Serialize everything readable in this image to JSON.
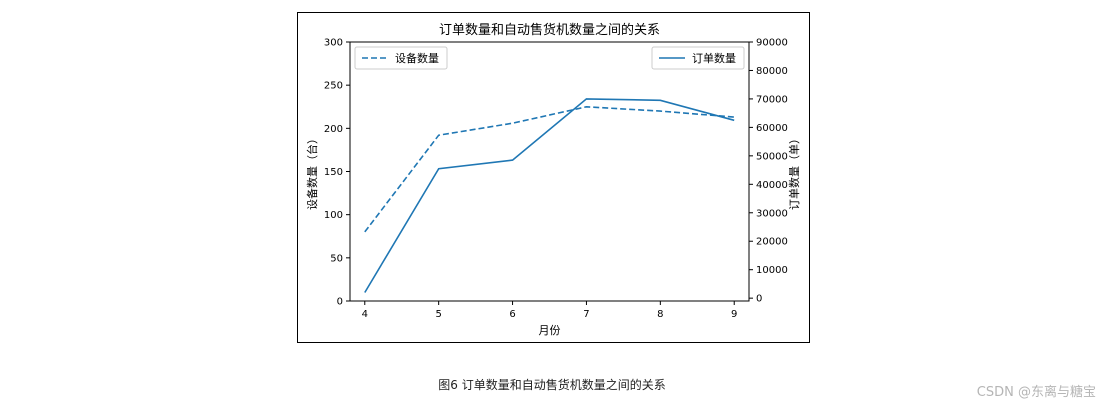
{
  "caption": "图6 订单数量和自动售货机数量之间的关系",
  "watermark": "CSDN @东离与糖宝",
  "chart_data": {
    "type": "line",
    "title": "订单数量和自动售货机数量之间的关系",
    "xlabel": "月份",
    "x": [
      4,
      5,
      6,
      7,
      8,
      9
    ],
    "x_ticks": [
      "4",
      "5",
      "6",
      "7",
      "8",
      "9"
    ],
    "series": [
      {
        "name": "设备数量",
        "axis": "left",
        "style": "dashed",
        "color": "#1f77b4",
        "values": [
          80,
          192,
          206,
          225,
          220,
          213
        ]
      },
      {
        "name": "订单数量",
        "axis": "right",
        "style": "solid",
        "color": "#1f77b4",
        "values": [
          2000,
          45500,
          48500,
          70000,
          69500,
          62500
        ]
      }
    ],
    "y_left": {
      "label": "设备数量（台）",
      "ylim": [
        0,
        300
      ],
      "ticks": [
        0,
        50,
        100,
        150,
        200,
        250,
        300
      ]
    },
    "y_right": {
      "label": "订单数量（单）",
      "ylim": [
        -1000,
        90000
      ],
      "ticks": [
        0,
        10000,
        20000,
        30000,
        40000,
        50000,
        60000,
        70000,
        80000,
        90000
      ]
    },
    "legends": [
      {
        "placement": "top-left",
        "entry": "设备数量",
        "style": "dashed"
      },
      {
        "placement": "top-right",
        "entry": "订单数量",
        "style": "solid"
      }
    ],
    "grid": false
  }
}
